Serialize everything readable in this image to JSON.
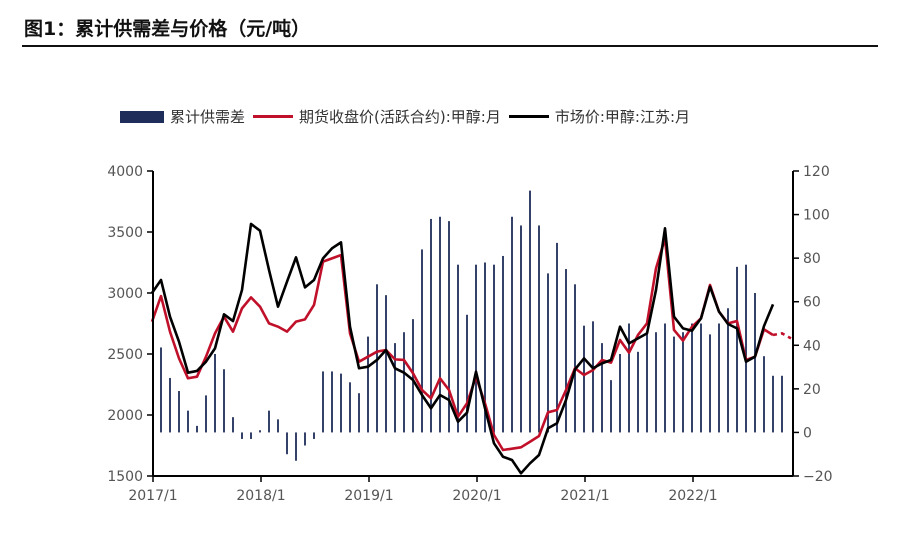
{
  "title": "图1：累计供需差与价格（元/吨）",
  "chart_data": {
    "type": "bar+line",
    "legend": [
      "累计供需差",
      "期货收盘价(活跃合约):甲醇:月",
      "市场价:甲醇:江苏:月"
    ],
    "legend_position": "top",
    "colors": {
      "bar": "#1f2d5a",
      "futures": "#c0102a",
      "spot": "#000000"
    },
    "x_start": "2017/1",
    "x_frequency": "monthly",
    "x_ticks": [
      "2017/1",
      "2018/1",
      "2019/1",
      "2020/1",
      "2021/1",
      "2022/1"
    ],
    "y_left": {
      "ticks": [
        1500,
        2000,
        2500,
        3000,
        3500,
        4000
      ],
      "range": [
        1500,
        4000
      ]
    },
    "y_right": {
      "ticks": [
        -20,
        0,
        20,
        40,
        60,
        80,
        100,
        120
      ],
      "range": [
        -20,
        120
      ]
    },
    "grid": false,
    "series": [
      {
        "name": "累计供需差",
        "axis": "right",
        "type": "bar",
        "values": [
          null,
          39,
          25,
          19,
          10,
          3,
          17,
          36,
          29,
          7,
          -3,
          -3,
          1,
          10,
          6,
          -10,
          -13,
          -6,
          -3,
          28,
          28,
          27,
          23,
          18,
          44,
          68,
          63,
          41,
          46,
          52,
          84,
          98,
          99,
          97,
          77,
          54,
          77,
          78,
          77,
          81,
          99,
          95,
          111,
          95,
          73,
          87,
          75,
          68,
          49,
          51,
          41,
          24,
          36,
          50,
          37,
          46,
          46,
          50,
          44,
          46,
          50,
          50,
          45,
          50,
          57,
          76,
          77,
          64,
          35,
          26,
          26
        ]
      },
      {
        "name": "期货收盘价(活跃合约):甲醇:月",
        "axis": "left",
        "type": "line",
        "values": [
          2765,
          2975,
          2683,
          2464,
          2301,
          2314,
          2478,
          2669,
          2806,
          2683,
          2874,
          2964,
          2888,
          2751,
          2724,
          2683,
          2765,
          2784,
          2902,
          3257,
          3284,
          3311,
          2669,
          2437,
          2478,
          2519,
          2533,
          2456,
          2451,
          2342,
          2205,
          2137,
          2301,
          2205,
          1986,
          2096,
          2314,
          2096,
          1836,
          1713,
          1724,
          1735,
          1781,
          1828,
          2022,
          2041,
          2205,
          2383,
          2328,
          2369,
          2451,
          2429,
          2615,
          2511,
          2656,
          2751,
          3202,
          3448,
          2697,
          2609,
          2724,
          2792,
          3066,
          2847,
          2751,
          2770,
          2451,
          2478,
          2702,
          2656,
          2669,
          2628
        ],
        "dashed_from_index": 69
      },
      {
        "name": "市场价:甲醇:江苏:月",
        "axis": "left",
        "type": "line",
        "values": [
          3000,
          3107,
          2806,
          2601,
          2347,
          2361,
          2437,
          2546,
          2825,
          2770,
          3025,
          3566,
          3511,
          3189,
          2888,
          3093,
          3292,
          3046,
          3107,
          3284,
          3366,
          3415,
          2724,
          2383,
          2396,
          2451,
          2533,
          2383,
          2347,
          2287,
          2164,
          2055,
          2164,
          2123,
          1945,
          2019,
          2355,
          2055,
          1768,
          1658,
          1631,
          1522,
          1604,
          1672,
          1891,
          1932,
          2123,
          2374,
          2464,
          2383,
          2423,
          2451,
          2724,
          2587,
          2628,
          2669,
          3025,
          3530,
          2806,
          2710,
          2691,
          2792,
          3052,
          2847,
          2746,
          2710,
          2437,
          2478,
          2729,
          2907
        ]
      }
    ]
  }
}
